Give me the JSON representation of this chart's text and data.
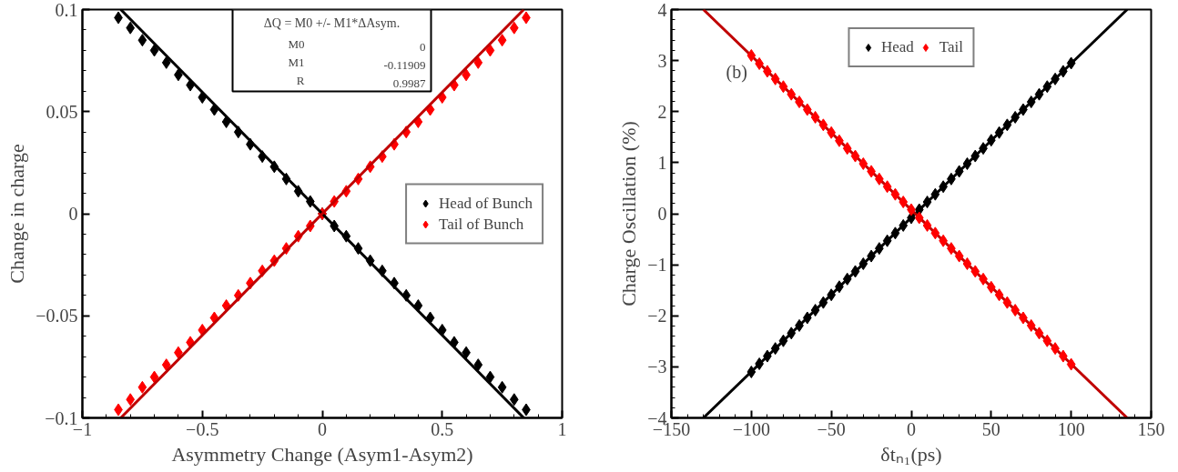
{
  "chart_data": [
    {
      "type": "scatter",
      "xlabel": "Asymmetry Change (Asym1-Asym2)",
      "ylabel": "Change in charge",
      "xlim": [
        -1,
        1
      ],
      "ylim": [
        -0.1,
        0.1
      ],
      "xticks": [
        -1,
        -0.5,
        0,
        0.5,
        1
      ],
      "yticks": [
        -0.1,
        -0.05,
        0,
        0.05,
        0.1
      ],
      "grid": false,
      "legend": "right",
      "marker": "diamond",
      "x": [
        -0.85,
        -0.8,
        -0.75,
        -0.7,
        -0.65,
        -0.6,
        -0.55,
        -0.5,
        -0.45,
        -0.4,
        -0.35,
        -0.3,
        -0.25,
        -0.2,
        -0.15,
        -0.1,
        -0.05,
        0,
        0.05,
        0.1,
        0.15,
        0.2,
        0.25,
        0.3,
        0.35,
        0.4,
        0.45,
        0.5,
        0.55,
        0.6,
        0.65,
        0.7,
        0.75,
        0.8,
        0.85
      ],
      "annotations": [
        "ΔQ = M0 +/- M1*ΔAsym.",
        "M0",
        "0",
        "M1",
        "-0.11909",
        "R",
        "0.9987"
      ],
      "series": [
        {
          "name": "Head of Bunch",
          "color": "#000000",
          "values": [
            0.096,
            0.091,
            0.085,
            0.08,
            0.074,
            0.068,
            0.063,
            0.057,
            0.051,
            0.045,
            0.04,
            0.034,
            0.028,
            0.023,
            0.017,
            0.011,
            0.006,
            0,
            -0.006,
            -0.011,
            -0.017,
            -0.023,
            -0.028,
            -0.034,
            -0.04,
            -0.045,
            -0.051,
            -0.057,
            -0.063,
            -0.068,
            -0.074,
            -0.08,
            -0.085,
            -0.091,
            -0.096
          ]
        },
        {
          "name": "Tail of Bunch",
          "color": "#ff0000",
          "values": [
            -0.096,
            -0.091,
            -0.085,
            -0.08,
            -0.074,
            -0.068,
            -0.063,
            -0.057,
            -0.051,
            -0.045,
            -0.04,
            -0.034,
            -0.028,
            -0.023,
            -0.017,
            -0.011,
            -0.006,
            0,
            0.006,
            0.011,
            0.017,
            0.023,
            0.028,
            0.034,
            0.04,
            0.045,
            0.051,
            0.057,
            0.063,
            0.068,
            0.074,
            0.08,
            0.085,
            0.091,
            0.096
          ]
        },
        {
          "type": "line",
          "marker": "none",
          "color": "#000000",
          "x": [
            -0.84,
            0.84
          ],
          "values": [
            0.1,
            -0.1
          ]
        },
        {
          "type": "line",
          "marker": "none",
          "color": "#c00000",
          "x": [
            -0.84,
            0.84
          ],
          "values": [
            -0.1,
            0.1
          ]
        }
      ]
    },
    {
      "type": "scatter",
      "xlabel": "δtₙ₁(ps)",
      "ylabel": "Charge Oscillation (%)",
      "xlim": [
        -150,
        150
      ],
      "ylim": [
        -4,
        4
      ],
      "xticks": [
        -150,
        -100,
        -50,
        0,
        50,
        100,
        150
      ],
      "yticks": [
        -4,
        -3,
        -2,
        -1,
        0,
        1,
        2,
        3,
        4
      ],
      "grid": false,
      "legend": "top",
      "marker": "diamond",
      "x": [
        -100,
        -95,
        -90,
        -85,
        -80,
        -75,
        -70,
        -65,
        -60,
        -55,
        -50,
        -45,
        -40,
        -35,
        -30,
        -25,
        -20,
        -15,
        -10,
        -5,
        0,
        5,
        10,
        15,
        20,
        25,
        30,
        35,
        40,
        45,
        50,
        55,
        60,
        65,
        70,
        75,
        80,
        85,
        90,
        95,
        100
      ],
      "annotations": [
        "(b)"
      ],
      "series": [
        {
          "type": "line",
          "marker": "none",
          "color": "#000000",
          "x": [
            -130,
            135
          ],
          "values": [
            -4,
            4
          ]
        },
        {
          "type": "line",
          "marker": "none",
          "color": "#c00000",
          "x": [
            -130,
            135
          ],
          "values": [
            4,
            -4
          ]
        },
        {
          "name": "Head",
          "color": "#000000",
          "values": [
            -3.1,
            -2.94,
            -2.79,
            -2.64,
            -2.49,
            -2.34,
            -2.19,
            -2.04,
            -1.89,
            -1.74,
            -1.59,
            -1.43,
            -1.28,
            -1.13,
            -0.98,
            -0.83,
            -0.68,
            -0.53,
            -0.38,
            -0.23,
            -0.08,
            0.08,
            0.23,
            0.38,
            0.53,
            0.68,
            0.83,
            0.98,
            1.13,
            1.28,
            1.44,
            1.59,
            1.74,
            1.89,
            2.04,
            2.19,
            2.34,
            2.49,
            2.64,
            2.79,
            2.95
          ]
        },
        {
          "name": "Tail",
          "color": "#ff0000",
          "values": [
            3.1,
            2.94,
            2.79,
            2.64,
            2.49,
            2.34,
            2.19,
            2.04,
            1.89,
            1.74,
            1.59,
            1.43,
            1.28,
            1.13,
            0.98,
            0.83,
            0.68,
            0.53,
            0.38,
            0.23,
            0.08,
            -0.08,
            -0.23,
            -0.38,
            -0.53,
            -0.68,
            -0.83,
            -0.98,
            -1.13,
            -1.28,
            -1.44,
            -1.59,
            -1.74,
            -1.89,
            -2.04,
            -2.19,
            -2.34,
            -2.49,
            -2.64,
            -2.79,
            -2.95
          ]
        }
      ]
    }
  ]
}
